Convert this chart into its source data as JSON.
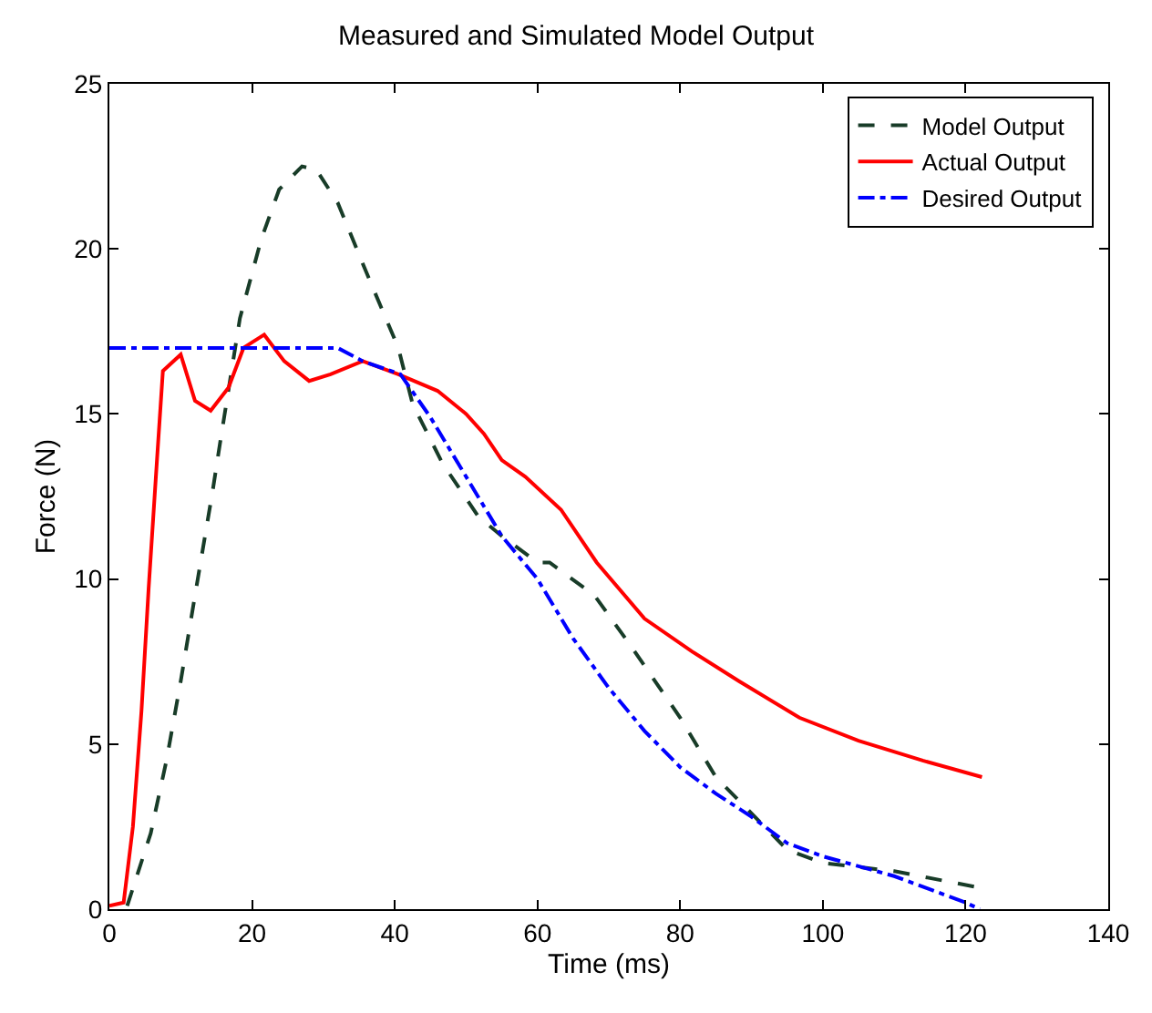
{
  "chart_data": {
    "type": "line",
    "title": "Measured and Simulated Model Output",
    "xlabel": "Time (ms)",
    "ylabel": "Force (N)",
    "xlim": [
      0,
      140
    ],
    "xticks": [
      0,
      20,
      40,
      60,
      80,
      100,
      120,
      140
    ],
    "ylim": [
      0,
      25
    ],
    "yticks": [
      0,
      5,
      10,
      15,
      20,
      25
    ],
    "legend": "top right",
    "marker": "none",
    "series": [
      {
        "name": "Model Output",
        "color": "#183c28",
        "line_style": "dashed",
        "x": [
          2.5,
          5.8,
          8,
          10,
          12,
          14.5,
          15.5,
          18.3,
          21.3,
          23.8,
          27,
          29,
          32,
          36,
          40.5,
          42.5,
          46.7,
          51.7,
          55,
          60,
          61.7,
          68,
          73,
          80,
          85,
          90,
          95,
          100,
          110,
          122
        ],
        "values": [
          0.1,
          2.3,
          4.5,
          6.9,
          9.5,
          12.7,
          14.1,
          17.9,
          20.3,
          21.8,
          22.5,
          22.4,
          21.4,
          19.3,
          17.0,
          15.3,
          13.5,
          11.9,
          11.3,
          10.5,
          10.5,
          9.5,
          8.0,
          5.8,
          4.0,
          2.9,
          1.8,
          1.4,
          1.15,
          0.65
        ]
      },
      {
        "name": "Actual Output",
        "color": "#ff0000",
        "line_style": "solid",
        "x": [
          0,
          2,
          3.3,
          4.5,
          5.5,
          6.7,
          7.5,
          10,
          12,
          14.2,
          16.7,
          18.8,
          21.7,
          24.5,
          28,
          31,
          35.5,
          40.5,
          46,
          50,
          52.5,
          55,
          58.3,
          63.3,
          68.3,
          75,
          81.7,
          88.3,
          96.7,
          105,
          114,
          122.3
        ],
        "values": [
          0.1,
          0.2,
          2.5,
          6,
          9.7,
          13.7,
          16.3,
          16.8,
          15.4,
          15.1,
          15.8,
          17.0,
          17.4,
          16.6,
          16.0,
          16.2,
          16.6,
          16.2,
          15.7,
          15.0,
          14.4,
          13.6,
          13.1,
          12.1,
          10.5,
          8.8,
          7.8,
          6.9,
          5.8,
          5.1,
          4.5,
          4.0
        ]
      },
      {
        "name": "Desired Output",
        "color": "#0000ff",
        "line_style": "dashdot",
        "x": [
          0,
          32,
          35.5,
          40.8,
          45,
          50,
          55,
          60,
          65,
          70,
          75,
          80,
          85,
          90,
          95,
          100,
          110,
          120,
          122
        ],
        "values": [
          17,
          17,
          16.6,
          16.2,
          14.9,
          13.1,
          11.3,
          10.0,
          8.2,
          6.7,
          5.4,
          4.3,
          3.5,
          2.8,
          2.0,
          1.6,
          1.0,
          0.2,
          0
        ]
      }
    ]
  }
}
